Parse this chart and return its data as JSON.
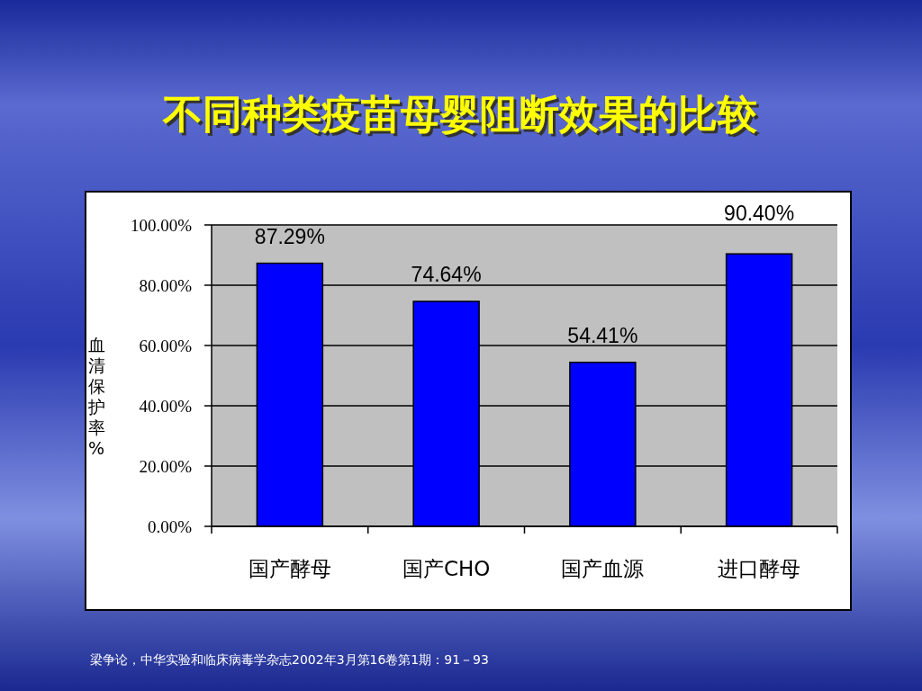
{
  "chart_data": {
    "type": "bar",
    "title": "不同种类疫苗母婴阻断效果的比较",
    "ylabel": "血清保护率%",
    "categories": [
      "国产酵母",
      "国产CHO",
      "国产血源",
      "进口酵母"
    ],
    "values": [
      87.29,
      74.64,
      54.41,
      90.4
    ],
    "color": "#0000ff",
    "value_labels": [
      "87.29%",
      "74.64%",
      "54.41%",
      "90.40%"
    ],
    "ylim": [
      0,
      100
    ],
    "yticks": [
      {
        "value": 0,
        "label": "0.00%"
      },
      {
        "value": 20,
        "label": "20.00%"
      },
      {
        "value": 40,
        "label": "40.00%"
      },
      {
        "value": 60,
        "label": "60.00%"
      },
      {
        "value": 80,
        "label": "80.00%"
      },
      {
        "value": 100,
        "label": "100.00%"
      }
    ],
    "grid": "y",
    "annotations": [
      "梁争论，中华实验和临床病毒学杂志2002年3月第16卷第1期：91－93"
    ]
  }
}
